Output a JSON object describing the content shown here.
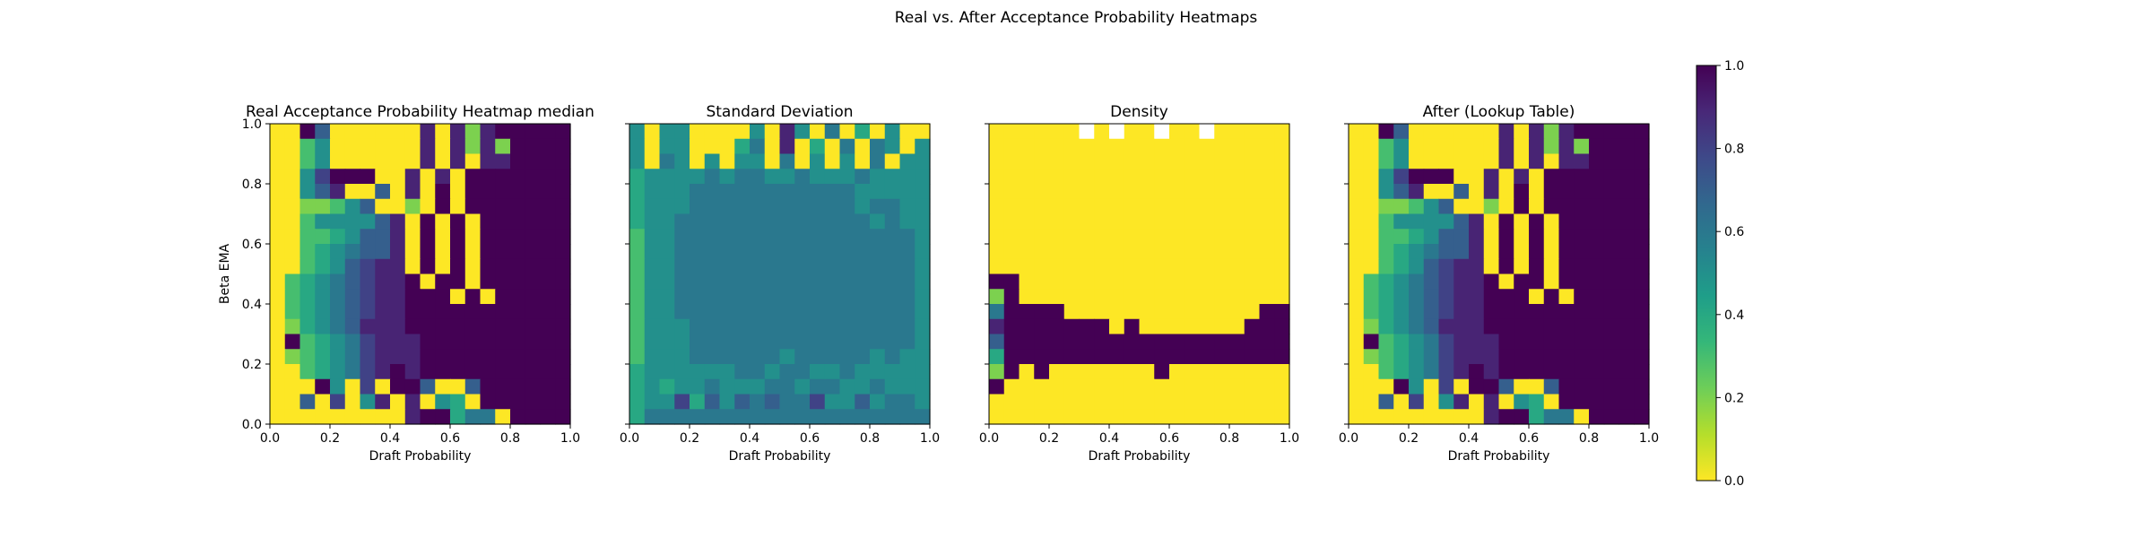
{
  "figure": {
    "suptitle": "Real vs. After Acceptance Probability Heatmaps",
    "colorbar": {
      "min": 0,
      "max": 1,
      "ticks": [
        "0.0",
        "0.2",
        "0.4",
        "0.6",
        "0.8",
        "1.0"
      ],
      "colormap": [
        "#fde725",
        "#b5de2b",
        "#6ece58",
        "#35b779",
        "#1f9e89",
        "#26828e",
        "#31688e",
        "#3e4989",
        "#482878",
        "#440154"
      ]
    }
  },
  "chart_data": [
    {
      "type": "heatmap",
      "title": "Real Acceptance Probability Heatmap median",
      "xlabel": "Draft Probability",
      "ylabel": "Beta EMA",
      "xlim": [
        0,
        1
      ],
      "ylim": [
        0,
        1
      ],
      "xticks": [
        "0.0",
        "0.2",
        "0.4",
        "0.6",
        "0.8",
        "1.0"
      ],
      "yticks": [
        "0.0",
        "0.2",
        "0.4",
        "0.6",
        "0.8",
        "1.0"
      ],
      "rows_top_to_bottom": [
        "..17.000..9.9291111111",
        "..35.000..9.9292111111",
        "..35.0000.9.9.99111111",
        "..58111..9.9.1111111111",
        "..579007.9.1.1111111111",
        "..22357.02.1.1111111111",
        "..3555579.1.1.111111111",
        "..3345779.1.1.111111111",
        "..3456779.1.1.111111111",
        "..3457899.1.1.111111111",
        ".345678991.11.111111111",
        ".34567899111.1.11111111",
        ".3456789911111111111111",
        ".2456799911111111111111",
        ".1345689991111111111111",
        ".2345689991111111111111",
        "..345689191111111111111",
        ".0.15.8.117..711111111.",
        "..7.8.59.9.54.11111111.",
        "...0..00.911466.1111111",
        "................0000909"
      ]
    },
    {
      "type": "heatmap",
      "title": "Standard Deviation",
      "xlabel": "Draft Probability",
      "xlim": [
        0,
        1
      ],
      "ylim": [
        0,
        1
      ],
      "xticks": [
        "0.0",
        "0.2",
        "0.4",
        "0.6",
        "0.8",
        "1.0"
      ],
      "rows_top_to_bottom": [
        "5.55....5.95.6.4.5..74.",
        "5.55...46.9.4.6.65.55.2",
        "5.65.5.55.6.5.5.6.55.2",
        "4555565665565556555565.2",
        "4555666666666665555535.2",
        "4555666666666665665535.2",
        "4556666666666666565554.2",
        "3556666666666666666554.2",
        "3556666666666666666555.2",
        "3556666666666666666553.2",
        "3556666666666666666553.2",
        "3556666666666666666553.2",
        "3556666666666666666553.2",
        "3555666666666666666553.2",
        "3555666666666666666553.2",
        "3555666666566666565553.2",
        "4555555665665565555555.2",
        "4545565556656655655554.2",
        "4558475767668557566544.2",
        "4666666666666666666666.6",
        "20....................."
      ]
    },
    {
      "type": "heatmap",
      "title": "Density",
      "xlabel": "Draft Probability",
      "xlim": [
        0,
        1
      ],
      "ylim": [
        0,
        1
      ],
      "xticks": [
        "0.0",
        "0.2",
        "0.4",
        "0.6",
        "0.8",
        "1.0"
      ],
      "rows_top_to_bottom": [
        "......W.W..W..W........",
        "......................",
        "......................",
        "......................",
        "......................",
        "......................",
        "......................",
        "......................",
        "......................",
        "0.....................",
        "11...................",
        "21..................0",
        "61111.............11",
        "91111111.1.......111",
        "71111111111111111111",
        "4111111111111111111",
        "21.1.......1.........",
        "1....................",
        "0.....................",
        "......................",
        "......WWWWW.WWWWWWWWW.W"
      ]
    },
    {
      "type": "heatmap",
      "title": "After (Lookup Table)",
      "xlabel": "Draft Probability",
      "xlim": [
        0,
        1
      ],
      "ylim": [
        0,
        1
      ],
      "xticks": [
        "0.0",
        "0.2",
        "0.4",
        "0.6",
        "0.8",
        "1.0"
      ],
      "rows_top_to_bottom": [
        "..17.000..9.9291111111",
        "..35.000..9.9292111111",
        "..35.0000.9.9.99111111",
        "..58111..9.9.1111111111",
        "..579007.9.1.1111111111",
        "..22357.02.1.1111111111",
        "..3555579.1.1.111111111",
        "..3345779.1.1.111111111",
        "..3456779.1.1.111111111",
        "..3457899.1.1.111111111",
        ".345678991.11.111111111",
        ".34567899111.1.11111111",
        ".3456789911111111111111",
        ".2456799911111111111111",
        ".1345689991111111111111",
        ".2345689991111111111111",
        "..345689191111111111111",
        ".0.15.8.117..711111111.",
        "..7.8.59.9.54.11111111.",
        "...0..00.911466.1111111",
        "................0000909"
      ]
    }
  ]
}
